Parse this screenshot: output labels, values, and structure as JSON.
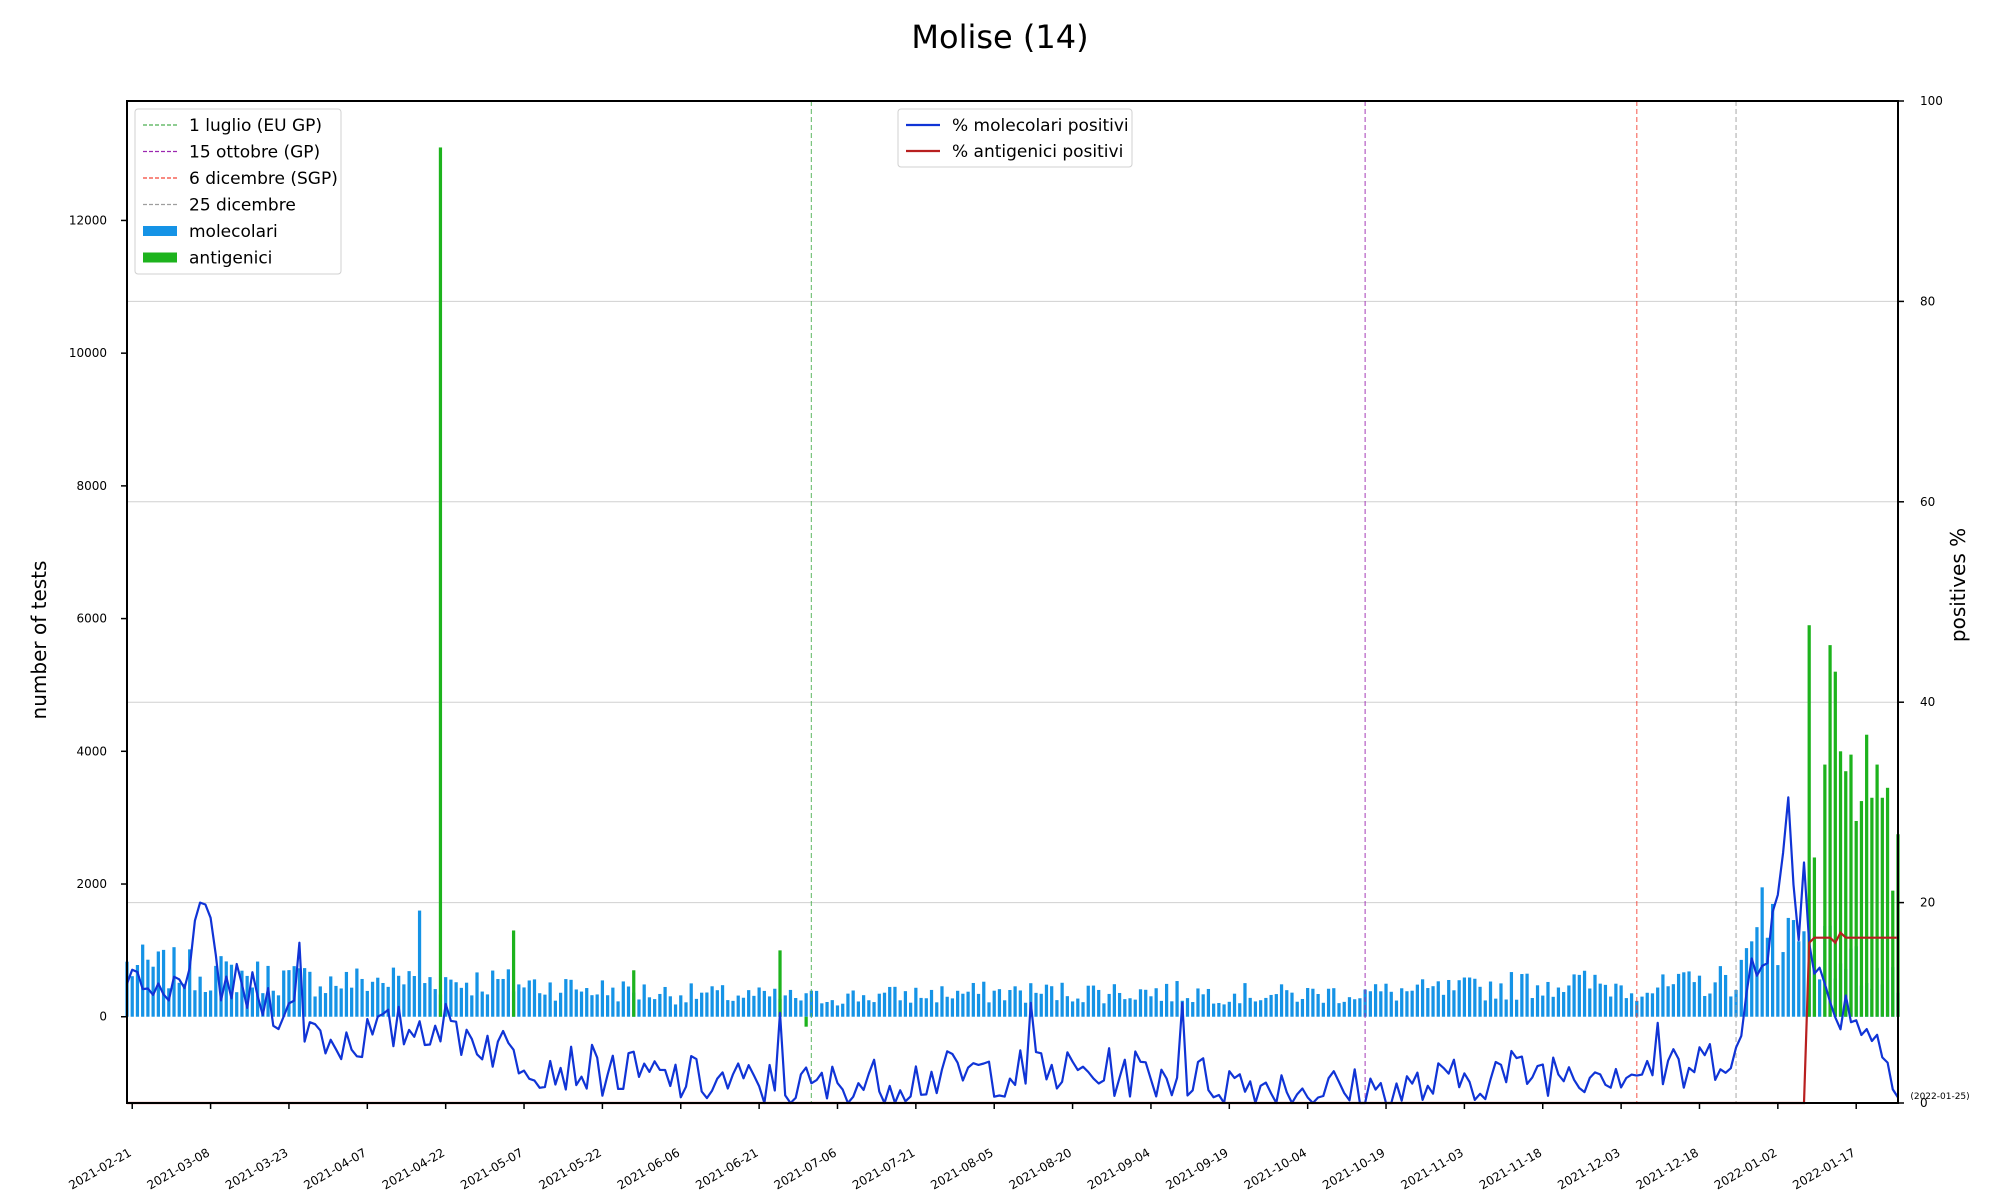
{
  "chart_data": {
    "type": "bar",
    "title": "Molise (14)",
    "ylabel_left": "number of tests",
    "ylabel_right": "positives %",
    "date_note": "(2022-01-25)",
    "x_range": [
      "2021-02-20",
      "2022-01-25"
    ],
    "x_tick_labels": [
      "2021-02-21",
      "2021-03-08",
      "2021-03-23",
      "2021-04-07",
      "2021-04-22",
      "2021-05-07",
      "2021-05-22",
      "2021-06-06",
      "2021-06-21",
      "2021-07-06",
      "2021-07-21",
      "2021-08-05",
      "2021-08-20",
      "2021-09-04",
      "2021-09-19",
      "2021-10-04",
      "2021-10-19",
      "2021-11-03",
      "2021-11-18",
      "2021-12-03",
      "2021-12-18",
      "2022-01-02",
      "2022-01-17"
    ],
    "y_left_range": [
      -1300,
      13800
    ],
    "y_left_ticks": [
      "0",
      "2000",
      "4000",
      "6000",
      "8000",
      "10000",
      "12000"
    ],
    "y_right_range": [
      0,
      100
    ],
    "y_right_ticks": [
      "0",
      "20",
      "40",
      "60",
      "80",
      "100"
    ],
    "grid": "horizontal",
    "legend_left": [
      {
        "label": "1 luglio (EU GP)",
        "kind": "dashed",
        "color": "#4caf50"
      },
      {
        "label": "15 ottobre (GP)",
        "kind": "dashed",
        "color": "#9c27b0"
      },
      {
        "label": "6 dicembre (SGP)",
        "kind": "dashed",
        "color": "#f44336"
      },
      {
        "label": "25 dicembre",
        "kind": "dashed",
        "color": "#9e9e9e"
      },
      {
        "label": "molecolari",
        "kind": "patch",
        "color": "#1593e6"
      },
      {
        "label": "antigenici",
        "kind": "patch",
        "color": "#1db31d"
      }
    ],
    "legend_right": [
      {
        "label": "% molecolari positivi",
        "color": "#1034d6"
      },
      {
        "label": "% antigenici positivi",
        "color": "#b81f1f"
      }
    ],
    "vlines": [
      {
        "date": "2021-07-01",
        "color": "#4caf50"
      },
      {
        "date": "2021-10-15",
        "color": "#9c27b0"
      },
      {
        "date": "2021-12-06",
        "color": "#f44336"
      },
      {
        "date": "2021-12-25",
        "color": "#9e9e9e"
      }
    ],
    "colors": {
      "molecular": "#1593e6",
      "antigen": "#1db31d",
      "mol_pct": "#1034d6",
      "ant_pct": "#b81f1f",
      "grid": "#d0d0d0"
    },
    "molecular_keypoints": [
      {
        "date": "2021-02-20",
        "value": 800
      },
      {
        "date": "2021-03-01",
        "value": 750
      },
      {
        "date": "2021-03-15",
        "value": 650
      },
      {
        "date": "2021-04-01",
        "value": 550
      },
      {
        "date": "2021-04-15",
        "value": 600
      },
      {
        "date": "2021-05-01",
        "value": 550
      },
      {
        "date": "2021-06-01",
        "value": 380
      },
      {
        "date": "2021-07-01",
        "value": 300
      },
      {
        "date": "2021-08-01",
        "value": 380
      },
      {
        "date": "2021-09-01",
        "value": 400
      },
      {
        "date": "2021-10-01",
        "value": 350
      },
      {
        "date": "2021-11-01",
        "value": 420
      },
      {
        "date": "2021-11-20",
        "value": 550
      },
      {
        "date": "2021-12-10",
        "value": 450
      },
      {
        "date": "2021-12-25",
        "value": 600
      },
      {
        "date": "2022-01-01",
        "value": 1500
      },
      {
        "date": "2022-01-05",
        "value": 1300
      },
      {
        "date": "2022-01-25",
        "value": 500
      }
    ],
    "molecular_spikes": [
      {
        "date": "2021-04-17",
        "value": 1600
      },
      {
        "date": "2021-12-30",
        "value": 1950
      },
      {
        "date": "2022-01-01",
        "value": 1700
      }
    ],
    "antigen_points": [
      {
        "date": "2021-04-21",
        "value": 13100
      },
      {
        "date": "2021-05-05",
        "value": 1300
      },
      {
        "date": "2021-05-28",
        "value": 700
      },
      {
        "date": "2021-06-25",
        "value": 1000
      },
      {
        "date": "2021-06-30",
        "value": -150
      },
      {
        "date": "2022-01-08",
        "value": 5900
      },
      {
        "date": "2022-01-09",
        "value": 2400
      },
      {
        "date": "2022-01-11",
        "value": 3800
      },
      {
        "date": "2022-01-12",
        "value": 5600
      },
      {
        "date": "2022-01-13",
        "value": 5200
      },
      {
        "date": "2022-01-14",
        "value": 4000
      },
      {
        "date": "2022-01-15",
        "value": 3700
      },
      {
        "date": "2022-01-16",
        "value": 3950
      },
      {
        "date": "2022-01-17",
        "value": 2950
      },
      {
        "date": "2022-01-18",
        "value": 3250
      },
      {
        "date": "2022-01-19",
        "value": 4250
      },
      {
        "date": "2022-01-20",
        "value": 3300
      },
      {
        "date": "2022-01-21",
        "value": 3800
      },
      {
        "date": "2022-01-22",
        "value": 3300
      },
      {
        "date": "2022-01-23",
        "value": 3450
      },
      {
        "date": "2022-01-24",
        "value": 1900
      },
      {
        "date": "2022-01-25",
        "value": 2750
      }
    ],
    "mol_pct_keypoints": [
      {
        "date": "2021-02-20",
        "value": 11
      },
      {
        "date": "2021-02-28",
        "value": 10
      },
      {
        "date": "2021-03-07",
        "value": 18
      },
      {
        "date": "2021-03-10",
        "value": 12
      },
      {
        "date": "2021-03-20",
        "value": 10
      },
      {
        "date": "2021-04-01",
        "value": 6
      },
      {
        "date": "2021-04-10",
        "value": 7
      },
      {
        "date": "2021-04-20",
        "value": 8
      },
      {
        "date": "2021-05-10",
        "value": 4
      },
      {
        "date": "2021-06-01",
        "value": 2.5
      },
      {
        "date": "2021-07-01",
        "value": 1.5
      },
      {
        "date": "2021-08-01",
        "value": 3
      },
      {
        "date": "2021-09-01",
        "value": 3
      },
      {
        "date": "2021-10-01",
        "value": 1.5
      },
      {
        "date": "2021-10-20",
        "value": 1
      },
      {
        "date": "2021-11-10",
        "value": 3
      },
      {
        "date": "2021-12-01",
        "value": 3.5
      },
      {
        "date": "2021-12-15",
        "value": 3
      },
      {
        "date": "2021-12-26",
        "value": 6
      },
      {
        "date": "2021-12-28",
        "value": 13
      },
      {
        "date": "2021-12-31",
        "value": 14
      },
      {
        "date": "2022-01-02",
        "value": 23
      },
      {
        "date": "2022-01-04",
        "value": 30
      },
      {
        "date": "2022-01-06",
        "value": 18
      },
      {
        "date": "2022-01-09",
        "value": 13
      },
      {
        "date": "2022-01-12",
        "value": 10
      },
      {
        "date": "2022-01-17",
        "value": 9
      },
      {
        "date": "2022-01-21",
        "value": 6
      },
      {
        "date": "2022-01-25",
        "value": 3
      }
    ],
    "mol_pct_spikes": [
      {
        "date": "2021-03-06",
        "value": 20
      },
      {
        "date": "2021-03-25",
        "value": 16
      },
      {
        "date": "2021-06-25",
        "value": 9
      },
      {
        "date": "2021-08-12",
        "value": 10
      },
      {
        "date": "2021-09-10",
        "value": 10
      },
      {
        "date": "2021-12-10",
        "value": 8
      },
      {
        "date": "2022-01-04",
        "value": 30.5
      },
      {
        "date": "2022-01-07",
        "value": 24
      }
    ],
    "ant_pct_points": [
      {
        "date": "2021-02-20",
        "value": 0
      },
      {
        "date": "2022-01-07",
        "value": 0
      },
      {
        "date": "2022-01-08",
        "value": 16
      },
      {
        "date": "2022-01-09",
        "value": 16.5
      },
      {
        "date": "2022-01-12",
        "value": 16.5
      },
      {
        "date": "2022-01-13",
        "value": 16
      },
      {
        "date": "2022-01-14",
        "value": 17
      },
      {
        "date": "2022-01-15",
        "value": 16.5
      },
      {
        "date": "2022-01-25",
        "value": 16.5
      }
    ]
  }
}
